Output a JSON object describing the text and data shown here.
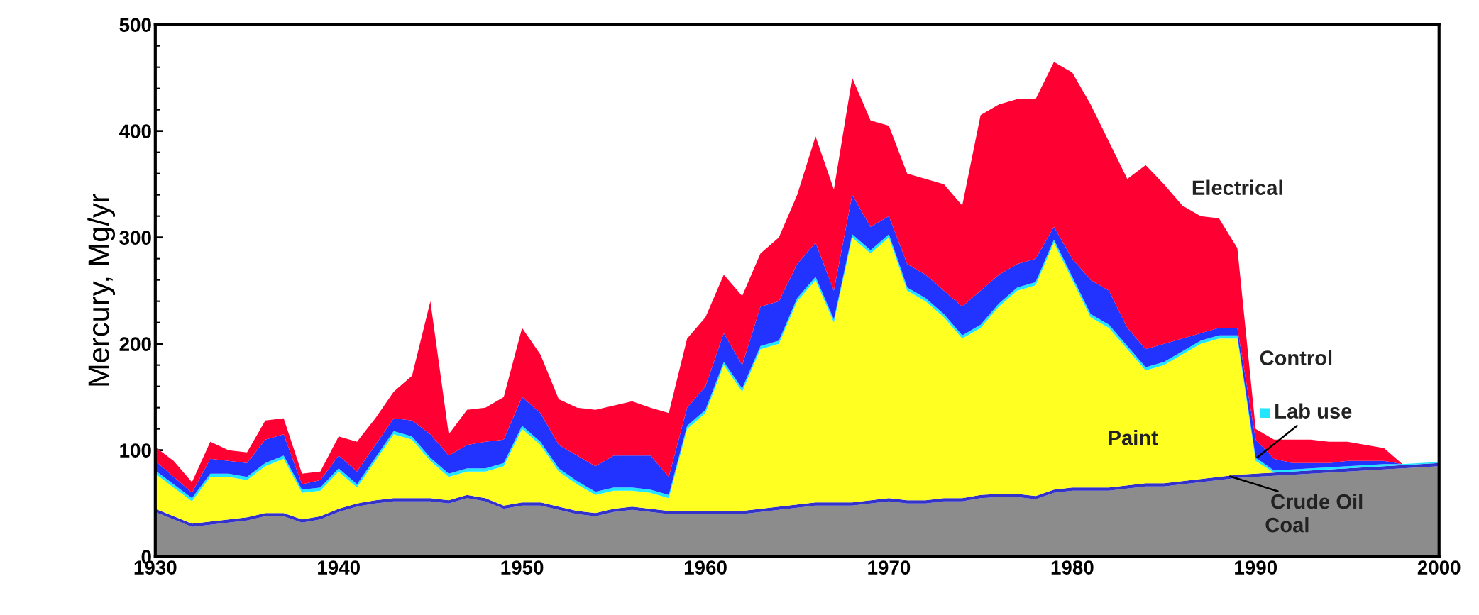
{
  "chart_data": {
    "type": "area",
    "stacked": true,
    "ylabel": "Mercury, Mg/yr",
    "x": [
      1930,
      1931,
      1932,
      1933,
      1934,
      1935,
      1936,
      1937,
      1938,
      1939,
      1940,
      1941,
      1942,
      1943,
      1944,
      1945,
      1946,
      1947,
      1948,
      1949,
      1950,
      1951,
      1952,
      1953,
      1954,
      1955,
      1956,
      1957,
      1958,
      1959,
      1960,
      1961,
      1962,
      1963,
      1964,
      1965,
      1966,
      1967,
      1968,
      1969,
      1970,
      1971,
      1972,
      1973,
      1974,
      1975,
      1976,
      1977,
      1978,
      1979,
      1980,
      1981,
      1982,
      1983,
      1984,
      1985,
      1986,
      1987,
      1988,
      1989,
      1990,
      1991,
      1992,
      1993,
      1994,
      1995,
      1996,
      1997,
      1998,
      1999,
      2000
    ],
    "series": [
      {
        "name": "Coal",
        "color": "#8c8c8c",
        "values": [
          42,
          35,
          28,
          30,
          32,
          34,
          38,
          38,
          32,
          35,
          42,
          47,
          50,
          52,
          52,
          52,
          50,
          55,
          52,
          45,
          48,
          48,
          44,
          40,
          38,
          42,
          44,
          42,
          40,
          40,
          40,
          40,
          40,
          42,
          44,
          46,
          48,
          48,
          48,
          50,
          52,
          50,
          50,
          52,
          52,
          55,
          56,
          56,
          54,
          60,
          62,
          62,
          62,
          64,
          66,
          66,
          68,
          70,
          72,
          74,
          75,
          76,
          77,
          78,
          79,
          80,
          81,
          82,
          83,
          84,
          85
        ]
      },
      {
        "name": "Crude Oil",
        "color": "#3333cc",
        "values": [
          3,
          3,
          3,
          3,
          3,
          3,
          3,
          3,
          3,
          3,
          3,
          3,
          3,
          3,
          3,
          3,
          3,
          3,
          3,
          3,
          3,
          3,
          3,
          3,
          3,
          3,
          3,
          3,
          3,
          3,
          3,
          3,
          3,
          3,
          3,
          3,
          3,
          3,
          3,
          3,
          3,
          3,
          3,
          3,
          3,
          3,
          3,
          3,
          3,
          3,
          3,
          3,
          3,
          3,
          3,
          3,
          3,
          3,
          3,
          3,
          3,
          3,
          3,
          3,
          3,
          3,
          3,
          3,
          3,
          3,
          3
        ]
      },
      {
        "name": "Paint",
        "color": "#ffff22",
        "values": [
          33,
          27,
          21,
          42,
          40,
          35,
          44,
          51,
          25,
          24,
          35,
          15,
          37,
          60,
          55,
          35,
          22,
          22,
          25,
          37,
          69,
          54,
          33,
          25,
          17,
          17,
          15,
          15,
          12,
          77,
          92,
          137,
          112,
          150,
          153,
          191,
          209,
          169,
          249,
          232,
          245,
          197,
          187,
          170,
          150,
          157,
          176,
          191,
          198,
          232,
          195,
          160,
          150,
          128,
          106,
          111,
          119,
          127,
          130,
          128,
          12,
          0,
          0,
          0,
          0,
          0,
          0,
          0,
          0,
          0,
          0
        ]
      },
      {
        "name": "Lab use",
        "color": "#22e5ff",
        "values": [
          3,
          3,
          3,
          3,
          3,
          3,
          3,
          3,
          3,
          3,
          3,
          3,
          3,
          3,
          3,
          3,
          3,
          3,
          3,
          3,
          3,
          3,
          3,
          3,
          3,
          3,
          3,
          3,
          3,
          3,
          3,
          3,
          3,
          3,
          3,
          3,
          3,
          3,
          3,
          3,
          3,
          3,
          3,
          3,
          3,
          3,
          3,
          3,
          3,
          3,
          3,
          3,
          3,
          3,
          3,
          3,
          3,
          3,
          3,
          3,
          3,
          2,
          2,
          2,
          2,
          2,
          2,
          2,
          1,
          1,
          1
        ]
      },
      {
        "name": "Control",
        "color": "#2233ff",
        "values": [
          9,
          7,
          5,
          14,
          12,
          13,
          22,
          20,
          5,
          7,
          12,
          12,
          12,
          12,
          15,
          22,
          17,
          22,
          25,
          22,
          27,
          27,
          22,
          24,
          24,
          30,
          30,
          32,
          17,
          17,
          22,
          27,
          22,
          37,
          37,
          32,
          32,
          27,
          37,
          22,
          17,
          22,
          22,
          22,
          27,
          32,
          27,
          22,
          22,
          12,
          17,
          32,
          32,
          17,
          17,
          17,
          12,
          7,
          7,
          7,
          17,
          11,
          6,
          5,
          4,
          5,
          4,
          3,
          0,
          0,
          0
        ]
      },
      {
        "name": "Electrical",
        "color": "#ff0033",
        "values": [
          13,
          15,
          10,
          16,
          10,
          10,
          18,
          15,
          10,
          8,
          18,
          28,
          25,
          25,
          42,
          125,
          20,
          33,
          32,
          40,
          65,
          55,
          43,
          45,
          53,
          47,
          51,
          45,
          60,
          65,
          65,
          55,
          65,
          50,
          60,
          65,
          100,
          95,
          110,
          100,
          85,
          85,
          90,
          100,
          95,
          165,
          160,
          155,
          150,
          155,
          175,
          165,
          140,
          140,
          173,
          150,
          125,
          110,
          103,
          75,
          10,
          18,
          22,
          22,
          20,
          18,
          15,
          12,
          0,
          0,
          0
        ]
      }
    ],
    "xlim": [
      1930,
      2000
    ],
    "ylim": [
      0,
      500
    ],
    "xticks": [
      1930,
      1940,
      1950,
      1960,
      1970,
      1980,
      1990,
      2000
    ],
    "yticks": [
      0,
      100,
      200,
      300,
      400,
      500
    ],
    "grid": false
  }
}
